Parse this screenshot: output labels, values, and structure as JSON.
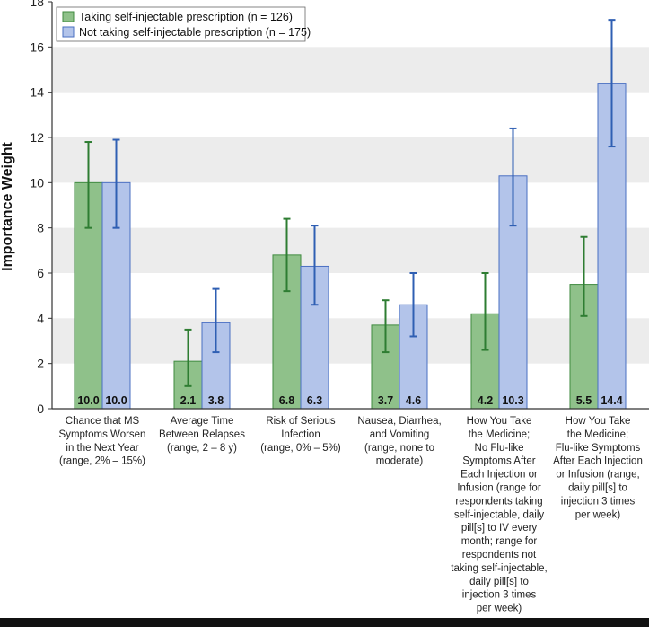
{
  "chart_data": {
    "type": "bar",
    "title": "",
    "xlabel": "",
    "ylabel": "Importance Weight",
    "ylim": [
      0,
      18
    ],
    "yticks": [
      "0",
      "2",
      "4",
      "6",
      "8",
      "10",
      "12",
      "14",
      "16",
      "18"
    ],
    "grid": "alternating horizontal bands",
    "legend_position": "top-left",
    "colors": {
      "taking": "#8fc18a",
      "taking_edge": "#3f8a3f",
      "taking_err": "#2e7d32",
      "not_taking": "#b3c4ea",
      "not_taking_edge": "#4a6fc2",
      "not_taking_err": "#2f5fb3",
      "band": "#ececec"
    },
    "categories": [
      [
        "Chance that MS",
        "Symptoms Worsen",
        "in the Next Year",
        "(range, 2% – 15%)"
      ],
      [
        "Average Time",
        "Between Relapses",
        "(range, 2 – 8 y)"
      ],
      [
        "Risk of Serious",
        "Infection",
        "(range, 0% – 5%)"
      ],
      [
        "Nausea, Diarrhea,",
        "and Vomiting",
        "(range, none to",
        "moderate)"
      ],
      [
        "How You Take",
        "the Medicine;",
        "No Flu-like",
        "Symptoms After",
        "Each Injection or",
        "Infusion (range for",
        "respondents taking",
        "self-injectable, daily",
        "pill[s] to IV every",
        "month; range for",
        "respondents not",
        "taking self-injectable,",
        "daily pill[s] to",
        "injection 3 times",
        "per week)"
      ],
      [
        "How You Take",
        "the Medicine;",
        "Flu-like Symptoms",
        "After Each Injection",
        "or Infusion (range,",
        "daily pill[s] to",
        "injection 3 times",
        "per week)"
      ]
    ],
    "series": [
      {
        "name": "Taking self-injectable prescription (n = 126)",
        "values": [
          10.0,
          2.1,
          6.8,
          3.7,
          4.2,
          5.5
        ],
        "labels": [
          "10.0",
          "2.1",
          "6.8",
          "3.7",
          "4.2",
          "5.5"
        ],
        "err_low": [
          8.0,
          1.0,
          5.2,
          2.5,
          2.6,
          4.1
        ],
        "err_high": [
          11.8,
          3.5,
          8.4,
          4.8,
          6.0,
          7.6
        ]
      },
      {
        "name": "Not taking self-injectable prescription (n = 175)",
        "values": [
          10.0,
          3.8,
          6.3,
          4.6,
          10.3,
          14.4
        ],
        "labels": [
          "10.0",
          "3.8",
          "6.3",
          "4.6",
          "10.3",
          "14.4"
        ],
        "err_low": [
          8.0,
          2.5,
          4.6,
          3.2,
          8.1,
          11.6
        ],
        "err_high": [
          11.9,
          5.3,
          8.1,
          6.0,
          12.4,
          17.2
        ]
      }
    ]
  }
}
